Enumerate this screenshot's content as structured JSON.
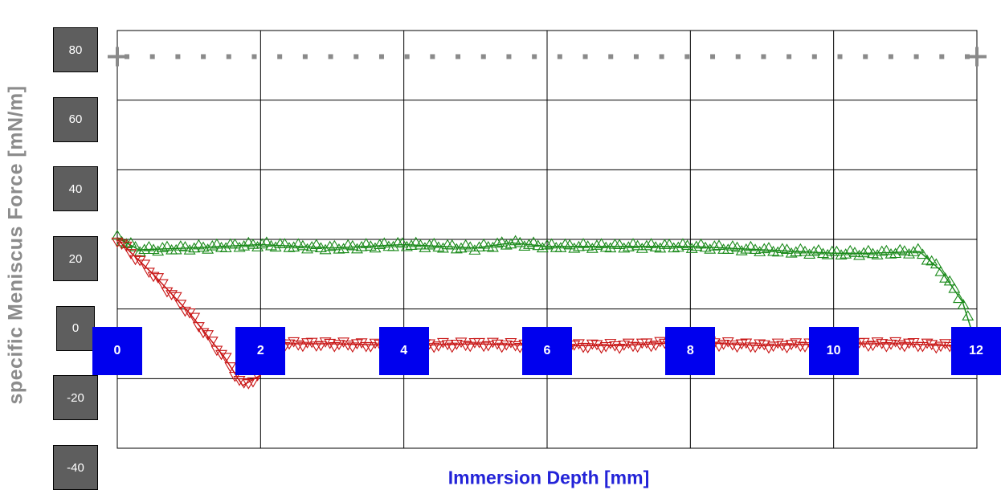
{
  "chart_data": {
    "type": "scatter",
    "xlabel": "Immersion Depth [mm]",
    "ylabel": "specific Meniscus Force [mN/m]",
    "xlim": [
      0,
      12
    ],
    "ylim": [
      -40,
      80
    ],
    "x_ticks": [
      "0",
      "2",
      "4",
      "6",
      "8",
      "10",
      "12"
    ],
    "y_ticks": [
      "80",
      "60",
      "40",
      "20",
      "0",
      "-20",
      "-40"
    ],
    "grid": true,
    "series": [
      {
        "marker": "plus-dotted",
        "color": "#8a8a8a",
        "points": [
          [
            0,
            72.5
          ],
          [
            12,
            72.5
          ]
        ]
      },
      {
        "marker": "triangle-up",
        "color": "#1a8a1a",
        "points": [
          [
            0,
            20.5
          ],
          [
            0.3,
            17
          ],
          [
            1,
            17.5
          ],
          [
            2,
            18.5
          ],
          [
            3,
            17.5
          ],
          [
            4,
            18.5
          ],
          [
            5,
            17.5
          ],
          [
            5.5,
            19
          ],
          [
            6,
            18
          ],
          [
            7,
            18
          ],
          [
            8,
            18
          ],
          [
            9,
            17
          ],
          [
            10,
            16
          ],
          [
            10.5,
            16
          ],
          [
            11.2,
            16.5
          ],
          [
            11.5,
            11
          ],
          [
            11.8,
            2
          ],
          [
            12,
            -11
          ]
        ]
      },
      {
        "marker": "triangle-down",
        "color": "#c81414",
        "points": [
          [
            0,
            20
          ],
          [
            0.5,
            10
          ],
          [
            1,
            -1
          ],
          [
            1.5,
            -14
          ],
          [
            1.75,
            -22
          ],
          [
            2,
            -19
          ],
          [
            2.1,
            -10
          ],
          [
            3,
            -10
          ],
          [
            4,
            -10.5
          ],
          [
            5,
            -10
          ],
          [
            6,
            -10.5
          ],
          [
            7,
            -10.5
          ],
          [
            8,
            -9.5
          ],
          [
            9,
            -10.5
          ],
          [
            10,
            -10
          ],
          [
            11,
            -10
          ],
          [
            12,
            -11
          ]
        ]
      }
    ]
  }
}
